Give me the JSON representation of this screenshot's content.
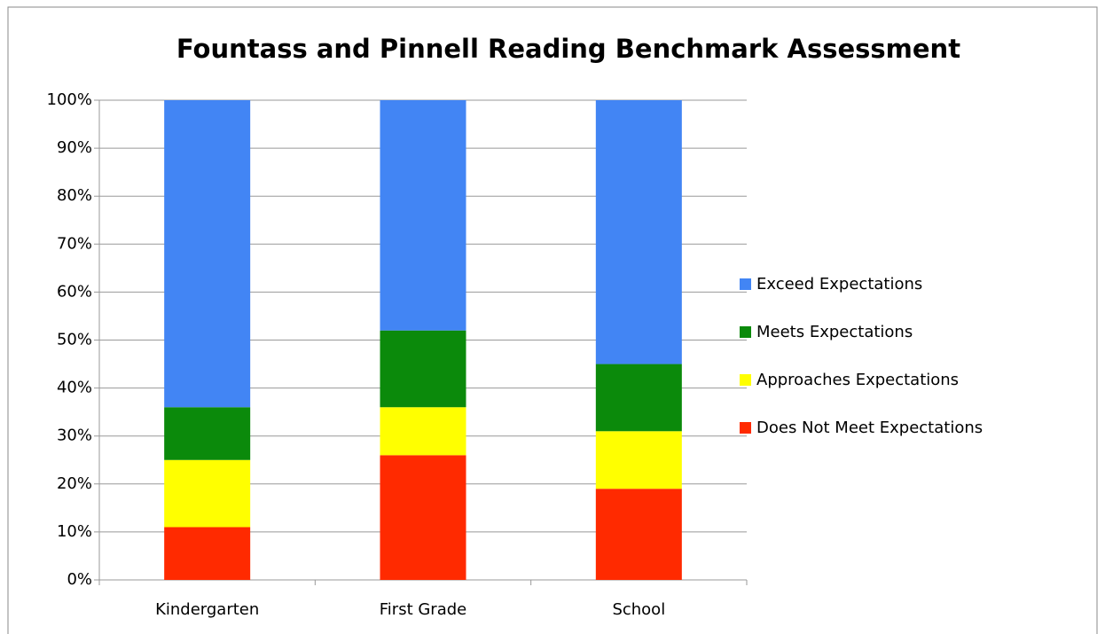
{
  "chart_data": {
    "type": "stacked_bar",
    "title": "Fountass and Pinnell Reading Benchmark Assessment",
    "categories": [
      "Kindergarten",
      "First Grade",
      "School"
    ],
    "series": [
      {
        "name": "Does Not Meet Expectations",
        "color": "#ff2a00",
        "values": [
          11,
          26,
          19
        ]
      },
      {
        "name": "Approaches Expectations",
        "color": "#ffff00",
        "values": [
          14,
          10,
          12
        ]
      },
      {
        "name": "Meets Expectations",
        "color": "#0b8a0b",
        "values": [
          11,
          16,
          14
        ]
      },
      {
        "name": "Exceed Expectations",
        "color": "#4285f4",
        "values": [
          64,
          48,
          55
        ]
      }
    ],
    "ylim": [
      0,
      100
    ],
    "yticks": [
      {
        "value": 0,
        "label": "0%"
      },
      {
        "value": 10,
        "label": "10%"
      },
      {
        "value": 20,
        "label": "20%"
      },
      {
        "value": 30,
        "label": "30%"
      },
      {
        "value": 40,
        "label": "40%"
      },
      {
        "value": 50,
        "label": "50%"
      },
      {
        "value": 60,
        "label": "60%"
      },
      {
        "value": 70,
        "label": "70%"
      },
      {
        "value": 80,
        "label": "80%"
      },
      {
        "value": 90,
        "label": "90%"
      },
      {
        "value": 100,
        "label": "100%"
      }
    ],
    "grid": true,
    "legend": "right"
  }
}
